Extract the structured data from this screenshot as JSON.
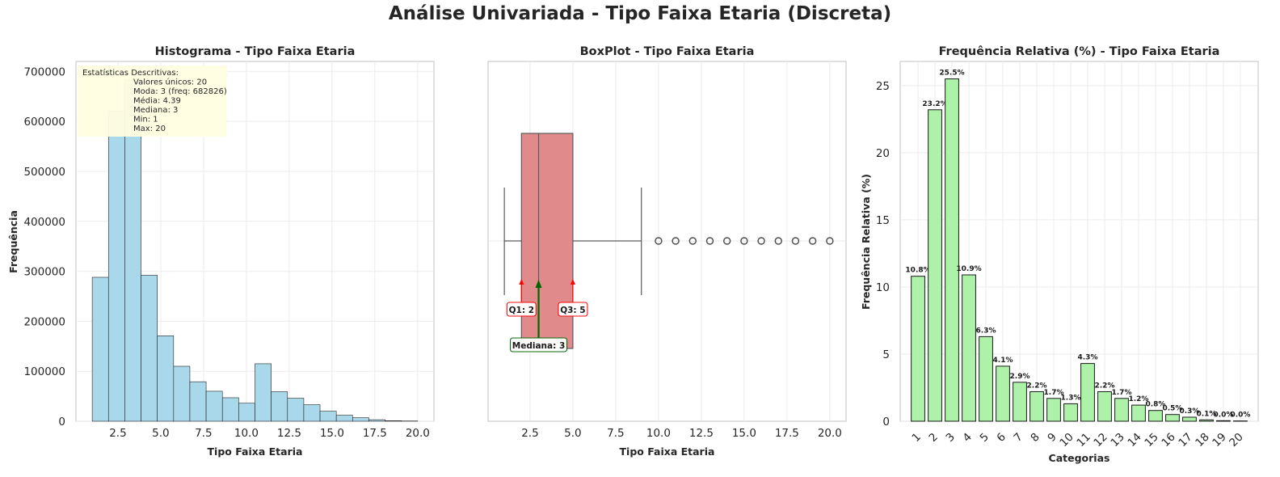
{
  "suptitle": "Análise Univariada - Tipo Faixa Etaria (Discreta)",
  "colors": {
    "hist_bar": "#a8d8ea",
    "box_fill": "#e08a8c",
    "rel_bar": "#adf2a8",
    "grid": "#ebebeb",
    "axis": "#cccccc",
    "arrow_q": "#ff0000",
    "arrow_median": "#006400",
    "stats_box": "#fffde0"
  },
  "chart_data": [
    {
      "type": "bar",
      "title": "Histograma - Tipo Faixa Etaria",
      "xlabel": "Tipo Faixa Etaria",
      "ylabel": "Frequência",
      "xlim": [
        0.05,
        20.95
      ],
      "ylim": [
        0,
        720000
      ],
      "xticks": [
        2.5,
        5.0,
        7.5,
        10.0,
        12.5,
        15.0,
        17.5,
        20.0
      ],
      "xtick_labels": [
        "2.5",
        "5.0",
        "7.5",
        "10.0",
        "12.5",
        "15.0",
        "17.5",
        "20.0"
      ],
      "yticks": [
        0,
        100000,
        200000,
        300000,
        400000,
        500000,
        600000,
        700000
      ],
      "ytick_labels": [
        "0",
        "100000",
        "200000",
        "300000",
        "400000",
        "500000",
        "600000",
        "700000"
      ],
      "bin_edges": [
        1.0,
        1.95,
        2.9,
        3.85,
        4.8,
        5.75,
        6.7,
        7.65,
        8.6,
        9.55,
        10.5,
        11.45,
        12.4,
        13.35,
        14.3,
        15.25,
        16.2,
        17.15,
        18.1,
        19.05,
        20.0
      ],
      "values": [
        288000,
        621000,
        682826,
        292000,
        171000,
        110000,
        79000,
        60000,
        47000,
        36000,
        115000,
        59000,
        46000,
        33000,
        20000,
        12000,
        7000,
        3000,
        1000,
        500
      ],
      "grid": true,
      "stats_box": {
        "title": "Estatísticas Descritivas:",
        "lines": [
          "Valores únicos: 20",
          "Moda: 3 (freq: 682826)",
          "Média: 4.39",
          "Mediana: 3",
          "Min: 1",
          "Max: 20"
        ]
      }
    },
    {
      "type": "box",
      "title": "BoxPlot - Tipo Faixa Etaria",
      "xlabel": "Tipo Faixa Etaria",
      "xlim": [
        0.05,
        20.95
      ],
      "xticks": [
        2.5,
        5.0,
        7.5,
        10.0,
        12.5,
        15.0,
        17.5,
        20.0
      ],
      "xtick_labels": [
        "2.5",
        "5.0",
        "7.5",
        "10.0",
        "12.5",
        "15.0",
        "17.5",
        "20.0"
      ],
      "whisker_low": 1,
      "q1": 2,
      "median": 3,
      "q3": 5,
      "whisker_high": 9,
      "outliers": [
        10,
        11,
        12,
        13,
        14,
        15,
        16,
        17,
        18,
        19,
        20
      ],
      "grid": true,
      "annotations": {
        "q1": "Q1: 2",
        "q3": "Q3: 5",
        "median": "Mediana: 3"
      }
    },
    {
      "type": "bar",
      "title": "Frequência Relativa (%) - Tipo Faixa Etaria",
      "xlabel": "Categorias",
      "ylabel": "Frequência Relativa (%)",
      "ylim": [
        0,
        26.8
      ],
      "yticks": [
        0,
        5,
        10,
        15,
        20,
        25
      ],
      "ytick_labels": [
        "0",
        "5",
        "10",
        "15",
        "20",
        "25"
      ],
      "categories": [
        "1",
        "2",
        "3",
        "4",
        "5",
        "6",
        "7",
        "8",
        "9",
        "10",
        "11",
        "12",
        "13",
        "14",
        "15",
        "16",
        "17",
        "18",
        "19",
        "20"
      ],
      "values": [
        10.8,
        23.2,
        25.5,
        10.9,
        6.3,
        4.1,
        2.9,
        2.2,
        1.7,
        1.3,
        4.3,
        2.2,
        1.7,
        1.2,
        0.8,
        0.5,
        0.3,
        0.1,
        0.04,
        0.02
      ],
      "value_labels": [
        "10.8%",
        "23.2%",
        "25.5%",
        "10.9%",
        "6.3%",
        "4.1%",
        "2.9%",
        "2.2%",
        "1.7%",
        "1.3%",
        "4.3%",
        "2.2%",
        "1.7%",
        "1.2%",
        "0.8%",
        "0.5%",
        "0.3%",
        "0.1%",
        "0.0%",
        "0.0%"
      ],
      "grid": true
    }
  ]
}
